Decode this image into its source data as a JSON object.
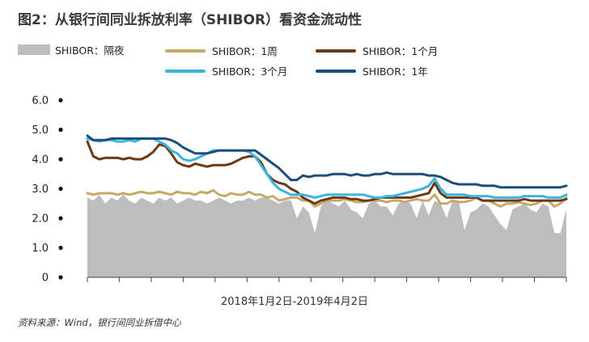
{
  "title": "图2：从银行间同业拆放利率（SHIBOR）看资金流动性",
  "source": "资料来源：Wind，银行间同业拆借中心",
  "colors": {
    "overnight": "#bdbdbd",
    "w1": "#c8a869",
    "m1": "#6b3a12",
    "m3": "#3bb5e0",
    "y1": "#1a4f7c"
  },
  "chart_data": {
    "type": "area",
    "xlabel": "2018年1月2日-2019年4月2日",
    "ylabel": "",
    "ylim": [
      0,
      6
    ],
    "yticks": [
      "0",
      "1.0",
      "2.0",
      "3.0",
      "4.0",
      "5.0",
      "6.0"
    ],
    "x": [
      0,
      1,
      2,
      3,
      4,
      5,
      6,
      7,
      8,
      9,
      10,
      11,
      12,
      13,
      14,
      15,
      16,
      17,
      18,
      19,
      20,
      21,
      22,
      23,
      24,
      25,
      26,
      27,
      28,
      29,
      30,
      31,
      32,
      33,
      34,
      35,
      36,
      37,
      38,
      39,
      40,
      41,
      42,
      43,
      44,
      45,
      46,
      47,
      48,
      49,
      50,
      51,
      52,
      53,
      54,
      55,
      56,
      57,
      58,
      59,
      60,
      61,
      62,
      63,
      64,
      65,
      66,
      67,
      68,
      69,
      70,
      71,
      72,
      73,
      74,
      75,
      76,
      77,
      78,
      79,
      80
    ],
    "series": [
      {
        "name": "SHIBOR：隔夜",
        "type": "area",
        "values": [
          2.7,
          2.6,
          2.8,
          2.5,
          2.7,
          2.6,
          2.8,
          2.6,
          2.5,
          2.7,
          2.6,
          2.5,
          2.7,
          2.6,
          2.7,
          2.5,
          2.6,
          2.7,
          2.6,
          2.6,
          2.5,
          2.6,
          2.7,
          2.6,
          2.5,
          2.6,
          2.6,
          2.7,
          2.6,
          2.7,
          2.7,
          2.6,
          2.5,
          2.6,
          2.6,
          2.0,
          2.4,
          2.2,
          1.5,
          2.4,
          2.6,
          2.5,
          2.4,
          2.6,
          2.3,
          2.2,
          2.0,
          2.5,
          2.6,
          2.4,
          2.4,
          2.1,
          2.5,
          2.6,
          2.5,
          2.0,
          2.6,
          2.1,
          2.6,
          2.5,
          2.0,
          2.6,
          2.6,
          1.6,
          2.2,
          2.3,
          2.5,
          2.4,
          2.1,
          1.8,
          1.6,
          2.3,
          2.4,
          2.5,
          2.3,
          2.2,
          2.5,
          2.4,
          1.5,
          1.5,
          2.3
        ]
      },
      {
        "name": "SHIBOR：1周",
        "type": "line",
        "values": [
          2.85,
          2.8,
          2.85,
          2.85,
          2.85,
          2.8,
          2.85,
          2.8,
          2.85,
          2.9,
          2.85,
          2.85,
          2.9,
          2.85,
          2.8,
          2.9,
          2.85,
          2.85,
          2.8,
          2.9,
          2.85,
          2.95,
          2.8,
          2.75,
          2.85,
          2.8,
          2.8,
          2.9,
          2.8,
          2.8,
          2.7,
          2.75,
          2.6,
          2.65,
          2.7,
          2.7,
          2.6,
          2.6,
          2.4,
          2.5,
          2.6,
          2.6,
          2.6,
          2.65,
          2.6,
          2.55,
          2.55,
          2.6,
          2.6,
          2.6,
          2.55,
          2.6,
          2.6,
          2.55,
          2.6,
          2.65,
          2.6,
          2.6,
          2.8,
          2.5,
          2.5,
          2.6,
          2.55,
          2.55,
          2.6,
          2.7,
          2.6,
          2.6,
          2.5,
          2.4,
          2.5,
          2.5,
          2.55,
          2.5,
          2.45,
          2.5,
          2.6,
          2.6,
          2.4,
          2.5,
          2.7
        ]
      },
      {
        "name": "SHIBOR：1个月",
        "type": "line",
        "values": [
          4.6,
          4.1,
          4.0,
          4.05,
          4.05,
          4.05,
          4.0,
          4.05,
          4.0,
          4.0,
          4.1,
          4.25,
          4.5,
          4.45,
          4.2,
          3.9,
          3.8,
          3.75,
          3.85,
          3.8,
          3.75,
          3.8,
          3.8,
          3.8,
          3.85,
          3.95,
          4.05,
          4.1,
          4.1,
          3.9,
          3.5,
          3.3,
          3.2,
          3.15,
          3.0,
          2.9,
          2.7,
          2.6,
          2.5,
          2.6,
          2.65,
          2.7,
          2.7,
          2.7,
          2.65,
          2.65,
          2.6,
          2.6,
          2.65,
          2.7,
          2.7,
          2.7,
          2.7,
          2.7,
          2.7,
          2.75,
          2.8,
          2.85,
          3.2,
          2.85,
          2.7,
          2.7,
          2.7,
          2.7,
          2.7,
          2.7,
          2.6,
          2.6,
          2.6,
          2.6,
          2.6,
          2.6,
          2.6,
          2.65,
          2.6,
          2.6,
          2.6,
          2.6,
          2.6,
          2.6,
          2.65
        ]
      },
      {
        "name": "SHIBOR：3个月",
        "type": "line",
        "values": [
          4.7,
          4.65,
          4.6,
          4.65,
          4.65,
          4.6,
          4.6,
          4.65,
          4.6,
          4.7,
          4.7,
          4.7,
          4.6,
          4.5,
          4.3,
          4.2,
          4.0,
          3.95,
          4.0,
          4.1,
          4.2,
          4.3,
          4.3,
          4.3,
          4.3,
          4.3,
          4.3,
          4.25,
          4.1,
          3.8,
          3.5,
          3.2,
          3.0,
          2.9,
          2.8,
          2.8,
          2.8,
          2.75,
          2.7,
          2.75,
          2.8,
          2.8,
          2.8,
          2.8,
          2.8,
          2.8,
          2.8,
          2.75,
          2.7,
          2.7,
          2.75,
          2.75,
          2.8,
          2.85,
          2.9,
          2.95,
          3.0,
          3.1,
          3.35,
          3.0,
          2.8,
          2.8,
          2.8,
          2.8,
          2.75,
          2.75,
          2.75,
          2.75,
          2.7,
          2.7,
          2.7,
          2.7,
          2.7,
          2.75,
          2.75,
          2.75,
          2.75,
          2.7,
          2.7,
          2.7,
          2.8
        ]
      },
      {
        "name": "SHIBOR：1年",
        "type": "line",
        "values": [
          4.8,
          4.65,
          4.65,
          4.65,
          4.7,
          4.7,
          4.7,
          4.7,
          4.7,
          4.7,
          4.7,
          4.7,
          4.7,
          4.7,
          4.65,
          4.55,
          4.4,
          4.3,
          4.2,
          4.2,
          4.2,
          4.25,
          4.3,
          4.3,
          4.3,
          4.3,
          4.3,
          4.3,
          4.3,
          4.15,
          4.0,
          3.85,
          3.7,
          3.5,
          3.3,
          3.3,
          3.45,
          3.4,
          3.45,
          3.45,
          3.45,
          3.5,
          3.5,
          3.5,
          3.45,
          3.5,
          3.45,
          3.45,
          3.5,
          3.5,
          3.55,
          3.5,
          3.5,
          3.5,
          3.5,
          3.5,
          3.5,
          3.45,
          3.45,
          3.4,
          3.3,
          3.2,
          3.15,
          3.15,
          3.15,
          3.15,
          3.1,
          3.1,
          3.1,
          3.05,
          3.05,
          3.05,
          3.05,
          3.05,
          3.05,
          3.05,
          3.05,
          3.05,
          3.05,
          3.05,
          3.1
        ]
      }
    ]
  }
}
